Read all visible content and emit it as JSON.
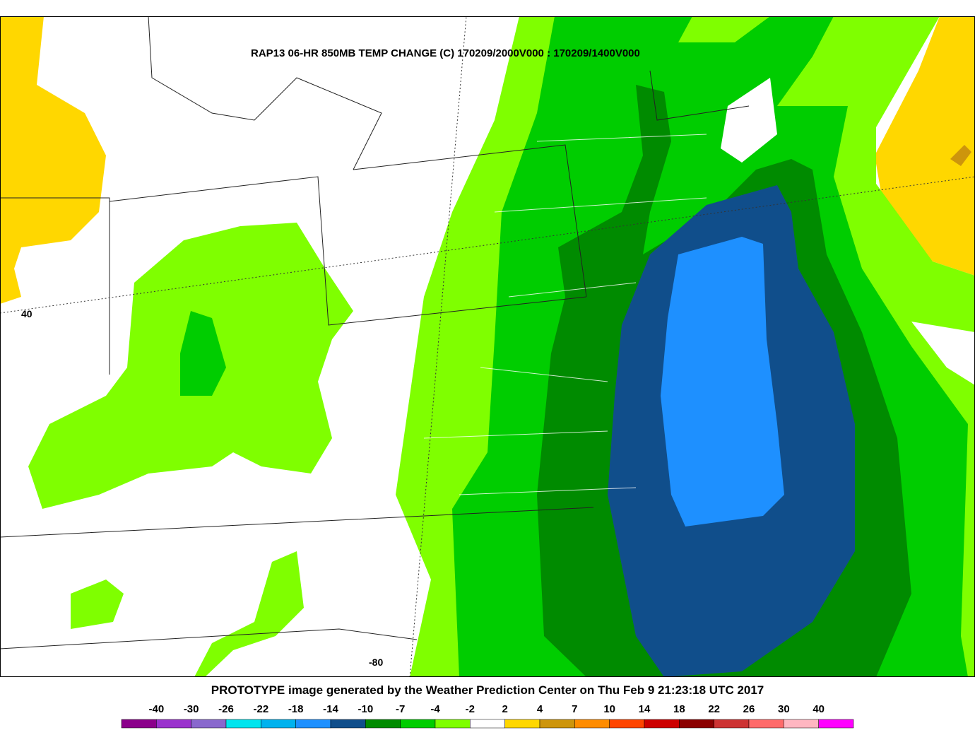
{
  "map": {
    "title": "RAP13 06-HR 850MB TEMP CHANGE (C) 170209/2000V000 : 170209/1400V000",
    "lat_label": "40",
    "lon_label": "-80"
  },
  "footer": "PROTOTYPE image generated by the Weather Prediction Center on Thu Feb 9 21:23:18 UTC 2017",
  "legend": {
    "labels": [
      -40,
      -30,
      -26,
      -22,
      -18,
      -14,
      -10,
      -7,
      -4,
      -2,
      2,
      4,
      7,
      10,
      14,
      18,
      22,
      26,
      30,
      40
    ],
    "colors": [
      "#8b008b",
      "#9a32cd",
      "#8968cd",
      "#00e5ee",
      "#00b2ee",
      "#1e90ff",
      "#104e8b",
      "#008b00",
      "#00cd00",
      "#7fff00",
      "#ffffff",
      "#ffd700",
      "#cd950c",
      "#ff8c00",
      "#ff4500",
      "#cd0000",
      "#8b0000",
      "#cd3333",
      "#ff6a6a",
      "#ffb6c1",
      "#ff00ff"
    ]
  }
}
